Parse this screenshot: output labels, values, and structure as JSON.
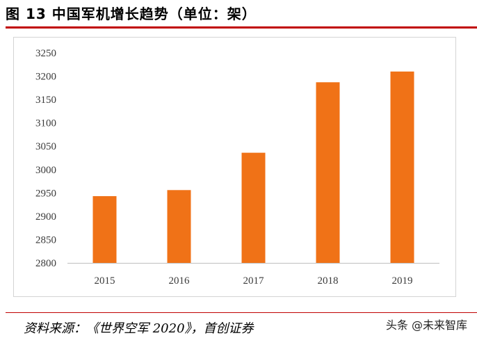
{
  "header": {
    "title": "图 13  中国军机增长趋势（单位：架）"
  },
  "footer": {
    "source": "资料来源：《世界空军 2020》，首创证券",
    "watermark": "头条 @未来智库"
  },
  "colors": {
    "bar": "#f07217",
    "accent_rule": "#c00000",
    "axis": "#bfbfbf"
  },
  "chart_data": {
    "type": "bar",
    "title": "",
    "xlabel": "",
    "ylabel": "",
    "categories": [
      "2015",
      "2016",
      "2017",
      "2018",
      "2019"
    ],
    "values": [
      2943,
      2956,
      3036,
      3187,
      3210
    ],
    "ylim": [
      2800,
      3250
    ],
    "yticks": [
      2800,
      2850,
      2900,
      2950,
      3000,
      3050,
      3100,
      3150,
      3200,
      3250
    ],
    "grid": false,
    "legend": "none"
  }
}
